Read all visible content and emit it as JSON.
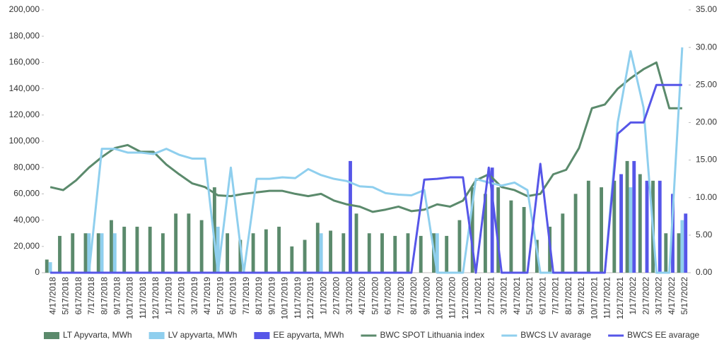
{
  "chart_data": {
    "type": "bar-line",
    "categories": [
      "4/17/2018",
      "5/17/2018",
      "6/17/2018",
      "7/17/2018",
      "8/17/2018",
      "9/17/2018",
      "10/17/2018",
      "11/17/2018",
      "12/17/2018",
      "1/17/2019",
      "2/17/2019",
      "3/17/2019",
      "4/17/2019",
      "5/17/2019",
      "6/17/2019",
      "7/17/2019",
      "8/17/2019",
      "9/17/2019",
      "10/17/2019",
      "11/17/2019",
      "12/17/2019",
      "1/17/2020",
      "2/17/2020",
      "3/17/2020",
      "4/17/2020",
      "5/17/2020",
      "6/17/2020",
      "7/17/2020",
      "8/17/2020",
      "9/17/2020",
      "10/17/2020",
      "11/17/2020",
      "12/17/2020",
      "1/17/2021",
      "2/17/2021",
      "3/17/2021",
      "4/17/2021",
      "5/17/2021",
      "6/17/2021",
      "7/17/2021",
      "8/17/2021",
      "9/17/2021",
      "10/17/2021",
      "11/17/2021",
      "12/17/2021",
      "1/17/2022",
      "2/17/2022",
      "3/17/2022",
      "4/17/2022",
      "5/17/2022"
    ],
    "series": [
      {
        "name": "LT Apyvarta, MWh",
        "kind": "bar",
        "color": "#5b8a6c",
        "values": [
          10000,
          28000,
          30000,
          30000,
          30000,
          40000,
          35000,
          35000,
          35000,
          30000,
          45000,
          45000,
          40000,
          65000,
          30000,
          25000,
          30000,
          33000,
          35000,
          20000,
          25000,
          38000,
          32000,
          30000,
          45000,
          30000,
          30000,
          28000,
          30000,
          28000,
          30000,
          28000,
          40000,
          65000,
          60000,
          65000,
          55000,
          50000,
          25000,
          35000,
          45000,
          60000,
          70000,
          65000,
          70000,
          85000,
          75000,
          70000,
          30000,
          30000
        ]
      },
      {
        "name": "LV apyvarta, MWh",
        "kind": "bar",
        "color": "#8fcfee",
        "values": [
          8000,
          0,
          0,
          30000,
          30000,
          30000,
          0,
          0,
          0,
          0,
          0,
          0,
          0,
          35000,
          0,
          0,
          0,
          0,
          0,
          0,
          0,
          30000,
          0,
          0,
          0,
          0,
          0,
          0,
          0,
          0,
          30000,
          0,
          0,
          0,
          0,
          0,
          0,
          0,
          0,
          0,
          0,
          0,
          0,
          0,
          0,
          65000,
          0,
          0,
          0,
          40000
        ]
      },
      {
        "name": "EE apyvarta, MWh",
        "kind": "bar",
        "color": "#5656e8",
        "values": [
          0,
          0,
          0,
          0,
          0,
          0,
          0,
          0,
          0,
          0,
          0,
          0,
          0,
          0,
          0,
          0,
          0,
          0,
          0,
          0,
          0,
          0,
          0,
          85000,
          0,
          0,
          0,
          0,
          0,
          0,
          0,
          0,
          0,
          0,
          80000,
          0,
          0,
          0,
          0,
          0,
          0,
          0,
          0,
          0,
          75000,
          85000,
          70000,
          70000,
          60000,
          45000
        ]
      },
      {
        "name": "BWC SPOT Lithuania index",
        "kind": "line",
        "axis": "y2",
        "color": "#5b8a6c",
        "values": [
          11.4,
          11.0,
          12.3,
          14.0,
          15.4,
          16.6,
          17.0,
          16.1,
          16.1,
          14.4,
          13.1,
          11.9,
          11.4,
          10.3,
          10.2,
          10.5,
          10.7,
          10.9,
          10.9,
          10.5,
          10.2,
          10.5,
          9.6,
          9.1,
          8.8,
          8.1,
          8.4,
          8.8,
          8.2,
          8.4,
          9.1,
          8.8,
          9.6,
          12.3,
          13.1,
          11.4,
          11.0,
          10.2,
          10.5,
          13.1,
          13.7,
          16.6,
          21.9,
          22.4,
          24.5,
          25.9,
          27.1,
          28.0,
          21.9,
          21.9
        ]
      },
      {
        "name": "BWCS LV avarage",
        "kind": "line",
        "axis": "y2",
        "color": "#8fcfee",
        "values": [
          0,
          0,
          0,
          0,
          16.5,
          16.5,
          16,
          16,
          15.8,
          16.5,
          15.7,
          15.2,
          15.2,
          0,
          14,
          0,
          12.5,
          12.5,
          12.7,
          12.6,
          13.8,
          13,
          12.5,
          12.2,
          11.5,
          11.4,
          10.6,
          10.4,
          10.3,
          11,
          0,
          0,
          0,
          12.5,
          12,
          11.6,
          12,
          11,
          0,
          0,
          0,
          0,
          0,
          0,
          20,
          29.5,
          22,
          0,
          0,
          30
        ]
      },
      {
        "name": "BWCS EE avarage",
        "kind": "line",
        "axis": "y2",
        "color": "#5656e8",
        "values": [
          0,
          0,
          0,
          0,
          0,
          0,
          0,
          0,
          0,
          0,
          0,
          0,
          0,
          0,
          0,
          0,
          0,
          0,
          0,
          0,
          0,
          0,
          0,
          0,
          0,
          0,
          0,
          0,
          0,
          12.4,
          12.5,
          12.7,
          12.7,
          0,
          14,
          0,
          0,
          0,
          14.5,
          0,
          0,
          0,
          0,
          0,
          18.5,
          20,
          20,
          25,
          25,
          25
        ]
      }
    ],
    "ylim": [
      0,
      200000
    ],
    "yticks": [
      0,
      {
        "value": 20000,
        "label": "20,000"
      },
      {
        "value": 40000,
        "label": "40,000"
      },
      {
        "value": 60000,
        "label": "60,000"
      },
      {
        "value": 80000,
        "label": "80,000"
      },
      {
        "value": 100000,
        "label": "100,000"
      },
      {
        "value": 120000,
        "label": "120,000"
      },
      {
        "value": 140000,
        "label": "140,000"
      },
      {
        "value": 160000,
        "label": "160,000"
      },
      {
        "value": 180000,
        "label": "180,000"
      },
      {
        "value": 200000,
        "label": "200,000"
      }
    ],
    "y2lim": [
      0,
      35
    ],
    "y2ticks": [
      {
        "value": 0,
        "label": "0.00"
      },
      {
        "value": 5,
        "label": "5.00"
      },
      {
        "value": 10,
        "label": "10.00"
      },
      {
        "value": 15,
        "label": "15.00"
      },
      {
        "value": 20,
        "label": "20.00"
      },
      {
        "value": 25,
        "label": "25.00"
      },
      {
        "value": 30,
        "label": "30.00"
      },
      {
        "value": 35,
        "label": "35.00"
      }
    ],
    "legend": "bottom"
  }
}
